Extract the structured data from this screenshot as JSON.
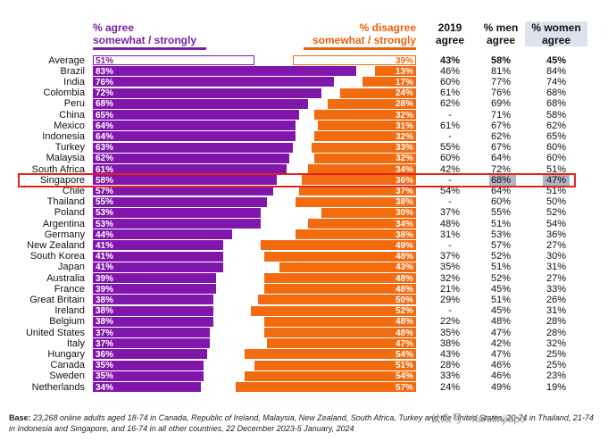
{
  "headers": {
    "agree_line1": "% agree",
    "agree_line2": "somewhat / strongly",
    "disagree_line1": "% disagree",
    "disagree_line2": "somewhat / strongly",
    "y2019_line1": "2019",
    "y2019_line2": "agree",
    "men_line1": "% men",
    "men_line2": "agree",
    "women_line1": "% women",
    "women_line2": "agree"
  },
  "colors": {
    "agree": "#8116ad",
    "disagree": "#f26b0f",
    "highlight": "#e5221b"
  },
  "highlighted_country": "Singapore",
  "chart_data": {
    "type": "bar",
    "orientation": "horizontal",
    "categories": [
      "Average",
      "Brazil",
      "India",
      "Colombia",
      "Peru",
      "China",
      "Mexico",
      "Indonesia",
      "Turkey",
      "Malaysia",
      "South Africa",
      "Singapore",
      "Chile",
      "Thailand",
      "Poland",
      "Argentina",
      "Germany",
      "New Zealand",
      "South Korea",
      "Japan",
      "Australia",
      "France",
      "Great Britain",
      "Ireland",
      "Belgium",
      "United States",
      "Italy",
      "Hungary",
      "Canada",
      "Sweden",
      "Netherlands"
    ],
    "series": [
      {
        "name": "% agree somewhat / strongly",
        "values": [
          51,
          83,
          76,
          72,
          68,
          65,
          64,
          64,
          63,
          62,
          61,
          58,
          57,
          55,
          53,
          53,
          44,
          41,
          41,
          41,
          39,
          39,
          38,
          38,
          38,
          37,
          37,
          36,
          35,
          35,
          34
        ]
      },
      {
        "name": "% disagree somewhat / strongly",
        "values": [
          39,
          13,
          17,
          24,
          28,
          32,
          31,
          32,
          33,
          32,
          34,
          36,
          37,
          38,
          30,
          34,
          38,
          49,
          48,
          43,
          48,
          48,
          50,
          52,
          48,
          48,
          47,
          54,
          51,
          54,
          57
        ]
      }
    ],
    "table": {
      "columns": [
        "2019 agree",
        "% men agree",
        "% women agree"
      ],
      "rows": [
        [
          "43%",
          "58%",
          "45%"
        ],
        [
          "46%",
          "81%",
          "84%"
        ],
        [
          "60%",
          "77%",
          "74%"
        ],
        [
          "61%",
          "76%",
          "68%"
        ],
        [
          "62%",
          "69%",
          "68%"
        ],
        [
          "-",
          "71%",
          "58%"
        ],
        [
          "61%",
          "67%",
          "62%"
        ],
        [
          "-",
          "62%",
          "65%"
        ],
        [
          "55%",
          "67%",
          "60%"
        ],
        [
          "60%",
          "64%",
          "60%"
        ],
        [
          "42%",
          "72%",
          "51%"
        ],
        [
          "-",
          "68%",
          "47%"
        ],
        [
          "54%",
          "64%",
          "51%"
        ],
        [
          "-",
          "60%",
          "50%"
        ],
        [
          "37%",
          "55%",
          "52%"
        ],
        [
          "48%",
          "51%",
          "54%"
        ],
        [
          "31%",
          "53%",
          "36%"
        ],
        [
          "-",
          "57%",
          "27%"
        ],
        [
          "37%",
          "52%",
          "30%"
        ],
        [
          "35%",
          "51%",
          "31%"
        ],
        [
          "32%",
          "52%",
          "27%"
        ],
        [
          "21%",
          "45%",
          "33%"
        ],
        [
          "29%",
          "51%",
          "26%"
        ],
        [
          "-",
          "45%",
          "31%"
        ],
        [
          "22%",
          "48%",
          "28%"
        ],
        [
          "35%",
          "47%",
          "28%"
        ],
        [
          "38%",
          "42%",
          "32%"
        ],
        [
          "43%",
          "47%",
          "25%"
        ],
        [
          "28%",
          "46%",
          "25%"
        ],
        [
          "33%",
          "46%",
          "23%"
        ],
        [
          "24%",
          "49%",
          "19%"
        ]
      ]
    }
  },
  "footer": {
    "base_label": "Base:",
    "base_text": " 23,268 online adults aged 18-74 in Canada, Republic of Ireland, Malaysia, New Zealand, South Africa, Turkey and the United States, 20-74 in Thailand, 21-74 in Indonesia and Singapore, and 16-74 in all other countries, 22 December 2023-5 January, 2024"
  },
  "watermark": "公众号 · kanxinjiapo"
}
